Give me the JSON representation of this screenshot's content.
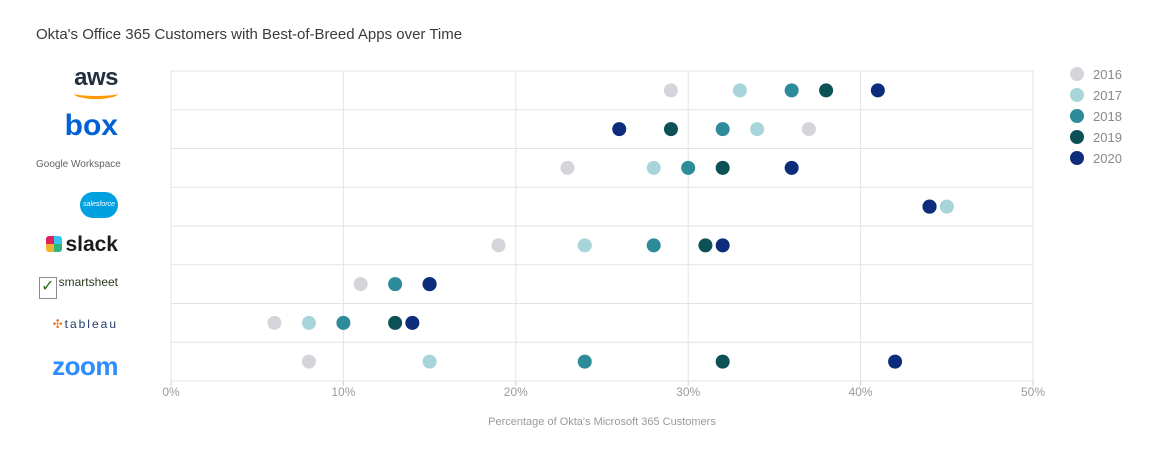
{
  "title": "Okta's Office 365 Customers with Best-of-Breed Apps over Time",
  "logos": {
    "aws": "aws",
    "box": "box",
    "google": "Google Workspace",
    "salesforce": "salesforce",
    "slack": "slack",
    "smartsheet": "smartsheet",
    "tableau": "tableau",
    "zoom": "zoom"
  },
  "chart_data": {
    "type": "scatter",
    "title": "Okta's Office 365 Customers with Best-of-Breed Apps over Time",
    "xlabel": "Percentage of Okta's Microsoft 365 Customers",
    "ylabel": "",
    "xlim": [
      0,
      50
    ],
    "xticks": [
      0,
      10,
      20,
      30,
      40,
      50
    ],
    "xtick_labels": [
      "0%",
      "10%",
      "20%",
      "30%",
      "40%",
      "50%"
    ],
    "grid": true,
    "legend_position": "right",
    "categories": [
      "AWS",
      "Box",
      "Google Workspace",
      "Salesforce",
      "Slack",
      "Smartsheet",
      "Tableau",
      "Zoom"
    ],
    "series": [
      {
        "name": "2016",
        "color": "#d4d5da",
        "values": [
          29,
          37,
          23,
          45,
          19,
          11,
          6,
          8
        ]
      },
      {
        "name": "2017",
        "color": "#a8d5d9",
        "values": [
          33,
          34,
          28,
          45,
          24,
          13,
          8,
          15
        ]
      },
      {
        "name": "2018",
        "color": "#2e8b9a",
        "values": [
          36,
          32,
          30,
          44,
          28,
          13,
          10,
          24
        ]
      },
      {
        "name": "2019",
        "color": "#0b5156",
        "values": [
          38,
          29,
          32,
          44,
          31,
          15,
          13,
          32
        ]
      },
      {
        "name": "2020",
        "color": "#0d2d7c",
        "values": [
          41,
          26,
          36,
          44,
          32,
          15,
          14,
          42
        ]
      }
    ]
  }
}
